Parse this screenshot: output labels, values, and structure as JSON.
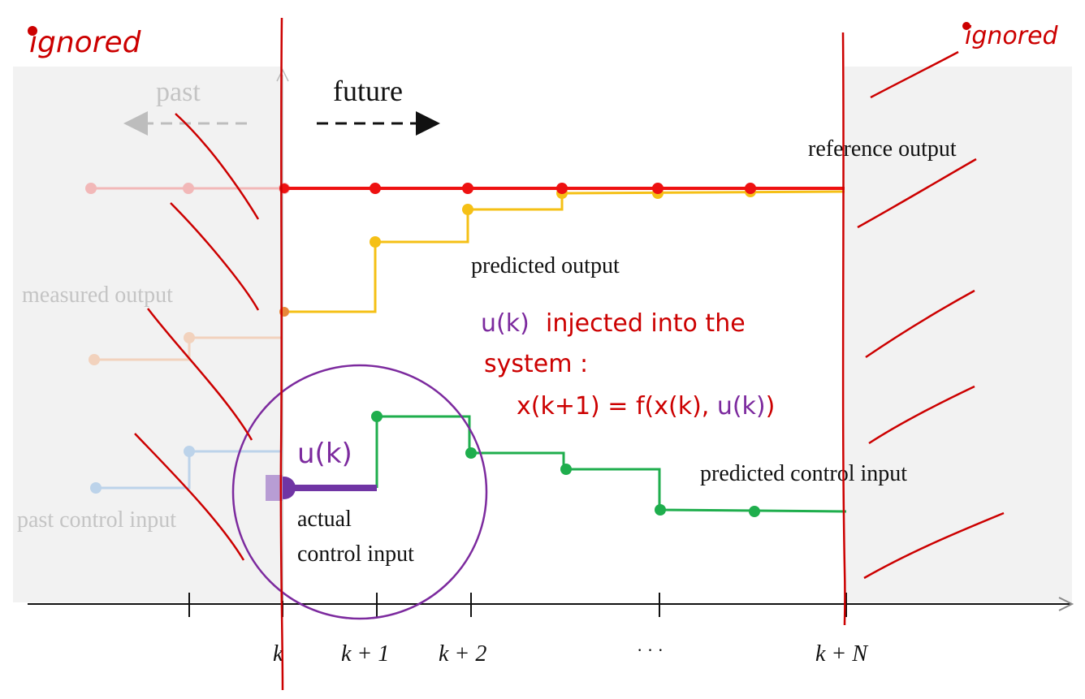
{
  "labels": {
    "past": "past",
    "future": "future",
    "reference_output": "reference output",
    "predicted_output": "predicted output",
    "measured_output": "measured output",
    "predicted_control_input": "predicted control input",
    "past_control_input": "past control input",
    "actual_control_line1": "actual",
    "actual_control_line2": "control input"
  },
  "ticks": {
    "k": "k",
    "k1": "k + 1",
    "k2": "k + 2",
    "dots": "· · ·",
    "kN": "k + N"
  },
  "annotations": {
    "ignored_left": "ignored",
    "ignored_right": "ignored",
    "u_k_circle": "u(k)",
    "inject_line1_a": "u(k)",
    "inject_line1_b": "injected into the",
    "inject_line2": "system :",
    "eq_part1": "x(k+1) = f(x(k), ",
    "eq_part2": "u(k)",
    "eq_part3": ")"
  },
  "colors": {
    "reference": "#ee1111",
    "reference_past": "#f2b8b8",
    "predicted_output": "#f5c016",
    "measured_past": "#f2d2bd",
    "control": "#1fae4d",
    "control_past": "#bcd3ea",
    "actual": "#7035a4",
    "annotation_red": "#cc0000",
    "annotation_purple": "#7c2a9e",
    "shade": "#f2f2f2"
  }
}
